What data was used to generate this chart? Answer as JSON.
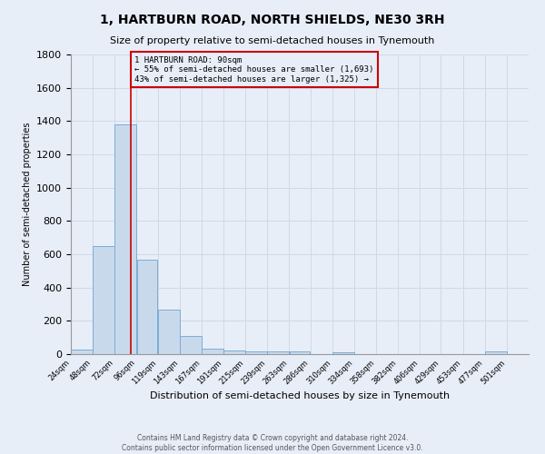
{
  "title": "1, HARTBURN ROAD, NORTH SHIELDS, NE30 3RH",
  "subtitle": "Size of property relative to semi-detached houses in Tynemouth",
  "xlabel": "Distribution of semi-detached houses by size in Tynemouth",
  "ylabel": "Number of semi-detached properties",
  "footnote1": "Contains HM Land Registry data © Crown copyright and database right 2024.",
  "footnote2": "Contains public sector information licensed under the Open Government Licence v3.0.",
  "bar_left_edges": [
    24,
    48,
    72,
    96,
    119,
    143,
    167,
    191,
    215,
    239,
    263,
    286,
    310,
    334,
    358,
    382,
    406,
    429,
    453,
    477
  ],
  "bar_heights": [
    30,
    650,
    1380,
    570,
    265,
    110,
    32,
    20,
    18,
    18,
    15,
    0,
    12,
    0,
    0,
    0,
    0,
    0,
    0,
    18
  ],
  "bar_widths": [
    24,
    24,
    24,
    23,
    24,
    24,
    24,
    24,
    24,
    24,
    23,
    24,
    24,
    24,
    24,
    24,
    23,
    24,
    24,
    24
  ],
  "bar_color": "#c9d9ec",
  "bar_edge_color": "#7aadd4",
  "property_line_x": 90,
  "property_line_color": "#cc0000",
  "annotation_line1": "1 HARTBURN ROAD: 90sqm",
  "annotation_line2": "← 55% of semi-detached houses are smaller (1,693)",
  "annotation_line3": "43% of semi-detached houses are larger (1,325) →",
  "annotation_box_color": "#cc0000",
  "ylim": [
    0,
    1800
  ],
  "yticks": [
    0,
    200,
    400,
    600,
    800,
    1000,
    1200,
    1400,
    1600,
    1800
  ],
  "xtick_labels": [
    "24sqm",
    "48sqm",
    "72sqm",
    "96sqm",
    "119sqm",
    "143sqm",
    "167sqm",
    "191sqm",
    "215sqm",
    "239sqm",
    "263sqm",
    "286sqm",
    "310sqm",
    "334sqm",
    "358sqm",
    "382sqm",
    "406sqm",
    "429sqm",
    "453sqm",
    "477sqm",
    "501sqm"
  ],
  "xtick_positions": [
    24,
    48,
    72,
    96,
    119,
    143,
    167,
    191,
    215,
    239,
    263,
    286,
    310,
    334,
    358,
    382,
    406,
    429,
    453,
    477,
    501
  ],
  "grid_color": "#d0d8e8",
  "bg_color": "#e8eef8"
}
